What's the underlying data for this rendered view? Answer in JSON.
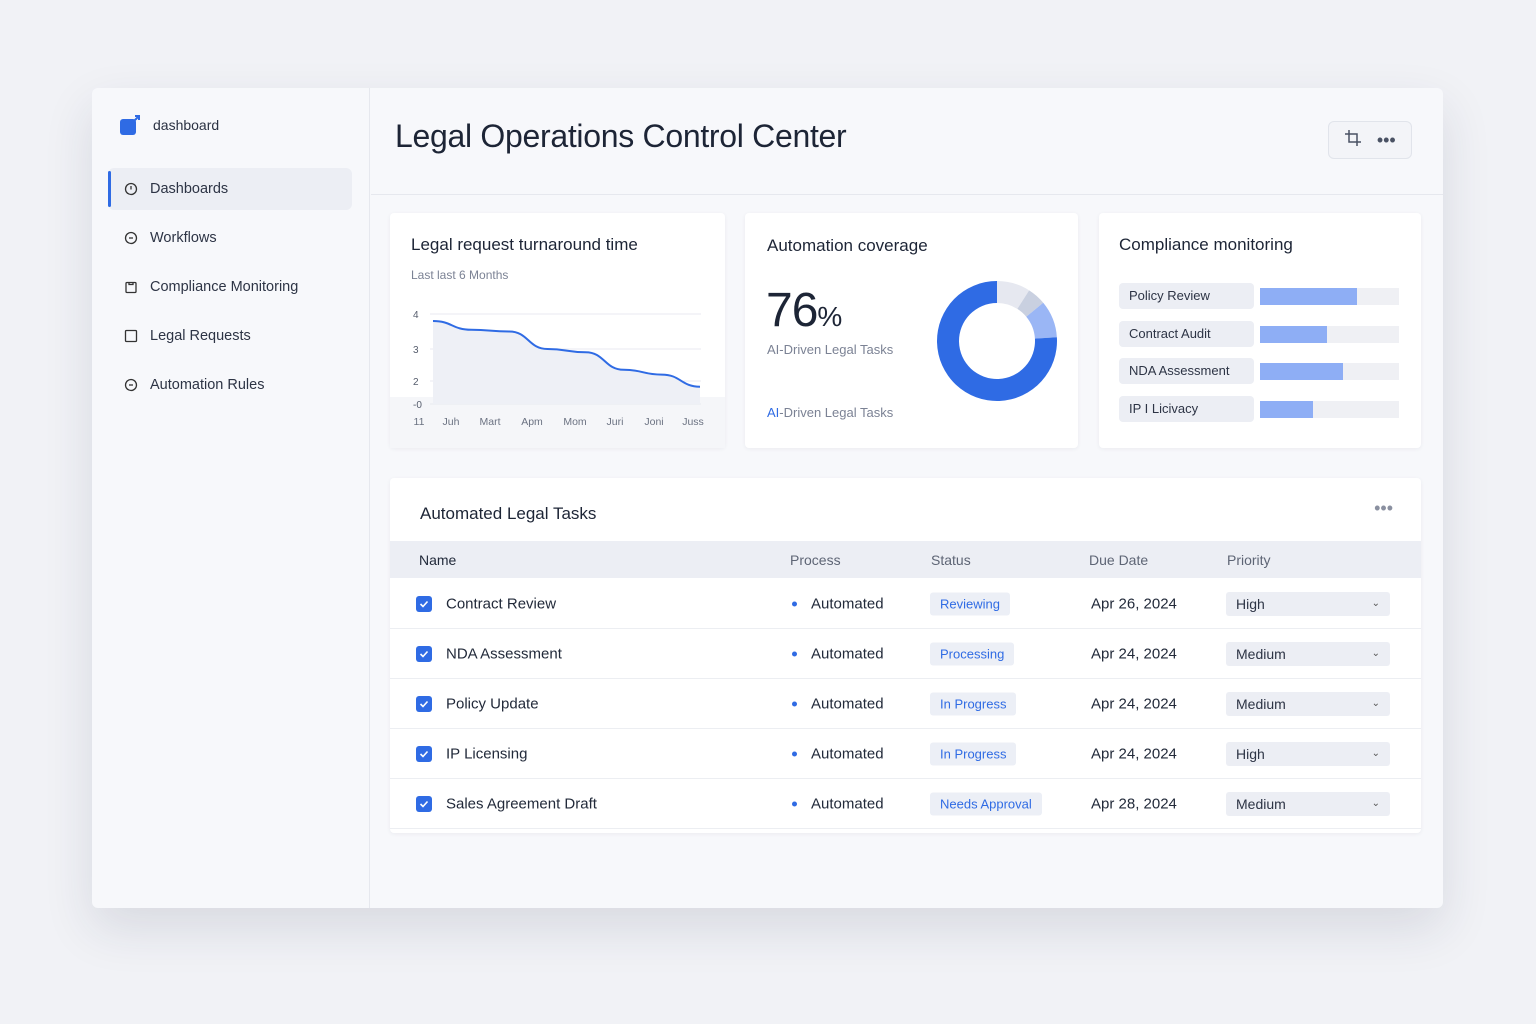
{
  "sidebar": {
    "brand": "dashboard",
    "items": [
      {
        "label": "Dashboards",
        "icon": "clock-icon",
        "active": true
      },
      {
        "label": "Workflows",
        "icon": "circle-icon"
      },
      {
        "label": "Compliance Monitoring",
        "icon": "clipboard-icon"
      },
      {
        "label": "Legal Requests",
        "icon": "square-icon"
      },
      {
        "label": "Automation Rules",
        "icon": "circle-icon"
      }
    ]
  },
  "header": {
    "title": "Legal Operations Control Center",
    "add_icon": "crop-plus-icon",
    "more_icon": "more-icon"
  },
  "turnaround": {
    "title": "Legal request turnaround time",
    "subtitle": "Last last 6 Months"
  },
  "automation": {
    "title": "Automation coverage",
    "value": "76",
    "unit": "%",
    "caption": "AI-Driven Legal Tasks",
    "link_prefix": "AI",
    "link_rest": "-Driven Legal Tasks"
  },
  "compliance": {
    "title": "Compliance monitoring",
    "items": [
      {
        "label": "Policy Review",
        "value": 70
      },
      {
        "label": "Contract Audit",
        "value": 48
      },
      {
        "label": "NDA Assessment",
        "value": 60
      },
      {
        "label": "IP I Licivacy",
        "value": 38
      }
    ]
  },
  "tasks": {
    "title": "Automated Legal Tasks",
    "columns": [
      "Name",
      "Process",
      "Status",
      "Due Date",
      "Priority"
    ],
    "rows": [
      {
        "name": "Contract Review",
        "process": "Automated",
        "status": "Reviewing",
        "due": "Apr 26, 2024",
        "priority": "High"
      },
      {
        "name": "NDA Assessment",
        "process": "Automated",
        "status": "Processing",
        "due": "Apr 24, 2024",
        "priority": "Medium"
      },
      {
        "name": "Policy Update",
        "process": "Automated",
        "status": "In Progress",
        "due": "Apr 24, 2024",
        "priority": "Medium"
      },
      {
        "name": "IP Licensing",
        "process": "Automated",
        "status": "In Progress",
        "due": "Apr 24, 2024",
        "priority": "High"
      },
      {
        "name": "Sales Agreement Draft",
        "process": "Automated",
        "status": "Needs Approval",
        "due": "Apr 28, 2024",
        "priority": "Medium"
      }
    ]
  },
  "colors": {
    "accent": "#2f6be4",
    "bar": "#8eaef5"
  },
  "chart_data": [
    {
      "type": "line",
      "title": "Legal request turnaround time",
      "subtitle": "Last last 6 Months",
      "categories": [
        "11",
        "Juh",
        "Mart",
        "Apm",
        "Mom",
        "Juri",
        "Joni",
        "Juss"
      ],
      "values": [
        3.8,
        3.55,
        3.5,
        3.0,
        2.9,
        2.35,
        2.2,
        1.5
      ],
      "yticks": [
        "4",
        "3",
        "2",
        "-0"
      ],
      "grid": true
    },
    {
      "type": "pie",
      "title": "Automation coverage",
      "values": [
        9,
        5,
        10,
        76
      ],
      "colors": [
        "#e6e8f0",
        "#c9d0e0",
        "#9ab6f5",
        "#2f6be4"
      ]
    }
  ]
}
